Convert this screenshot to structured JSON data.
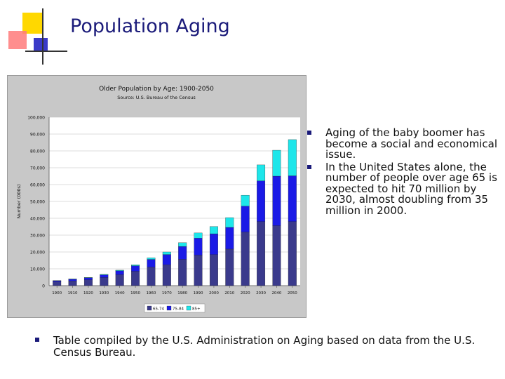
{
  "slide": {
    "title": "Population Aging",
    "accent_colors": {
      "yellow": "#ffd800",
      "red": "#ff6666",
      "blue": "#2f3eb8",
      "line": "#333333"
    }
  },
  "bullets_right": [
    "Aging of the baby boomer has become a social and economical issue.",
    "In the United States alone, the number of people over age 65 is expected to hit 70 million by 2030, almost doubling from 35 million in 2000."
  ],
  "bullets_bottom": [
    "Table compiled by the U.S. Administration on Aging based on data from the U.S. Census Bureau."
  ],
  "chart_data": {
    "type": "bar",
    "stacked": true,
    "title": "Older Population by Age: 1900-2050",
    "subtitle": "Source: U.S. Bureau of the Census",
    "ylabel": "Number (000s)",
    "xlabel": "",
    "ylim": [
      0,
      100000
    ],
    "yticks": [
      0,
      10000,
      20000,
      30000,
      40000,
      50000,
      60000,
      70000,
      80000,
      90000,
      100000
    ],
    "ytick_labels": [
      "0",
      "10,000",
      "20,000",
      "30,000",
      "40,000",
      "50,000",
      "60,000",
      "70,000",
      "80,000",
      "90,000",
      "100,000"
    ],
    "grid": true,
    "legend_position": "bottom",
    "categories": [
      "1900",
      "1910",
      "1920",
      "1930",
      "1940",
      "1950",
      "1960",
      "1970",
      "1980",
      "1990",
      "2000",
      "2010",
      "2020",
      "2030",
      "2040",
      "2050"
    ],
    "series": [
      {
        "name": "65-74",
        "color": "#3a3a8c",
        "values": [
          2200,
          2800,
          3500,
          4800,
          6500,
          8500,
          11000,
          12400,
          15600,
          18100,
          18400,
          21700,
          31800,
          38000,
          35600,
          38000
        ]
      },
      {
        "name": "75-84",
        "color": "#1a1ae6",
        "values": [
          700,
          1000,
          1200,
          1600,
          2300,
          3300,
          4600,
          6100,
          7700,
          10100,
          12400,
          12900,
          15400,
          24200,
          29400,
          27200
        ]
      },
      {
        "name": "85+",
        "color": "#1ee6ea",
        "values": [
          100,
          200,
          200,
          300,
          400,
          600,
          900,
          1500,
          2200,
          3100,
          4300,
          5800,
          6500,
          9500,
          15400,
          21500
        ]
      }
    ]
  }
}
